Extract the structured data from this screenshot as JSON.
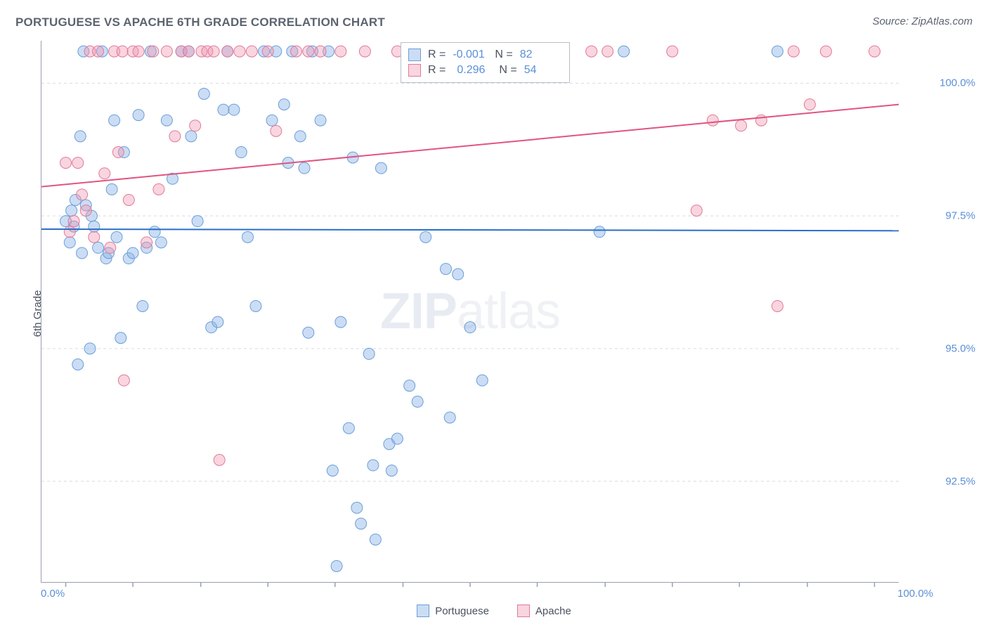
{
  "chart": {
    "type": "scatter",
    "title": "PORTUGUESE VS APACHE 6TH GRADE CORRELATION CHART",
    "source": "Source: ZipAtlas.com",
    "background_color": "#ffffff",
    "axis_color": "#9aa1ad",
    "grid_color": "#d8dce2",
    "grid_dash": "4,4",
    "y_axis": {
      "label": "6th Grade",
      "min": 90.6,
      "max": 100.8,
      "ticks": [
        92.5,
        95.0,
        97.5,
        100.0
      ],
      "tick_labels": [
        "92.5%",
        "95.0%",
        "97.5%",
        "100.0%"
      ],
      "label_color": "#5b8fd6",
      "label_fontsize": 15
    },
    "x_axis": {
      "min": -3,
      "max": 103,
      "ticks": [
        0,
        8.3,
        16.7,
        25,
        33.3,
        41.7,
        50,
        58.3,
        66.7,
        75,
        83.3,
        91.7,
        100
      ],
      "left_label": "0.0%",
      "right_label": "100.0%",
      "label_color": "#5b8fd6"
    },
    "series": [
      {
        "name": "Portuguese",
        "fill": "rgba(140, 180, 230, 0.45)",
        "stroke": "#6a9fd8",
        "line_color": "#2a6fc9",
        "line_width": 2,
        "marker_radius": 8,
        "R": "-0.001",
        "N": "82",
        "trend": {
          "y_at_xmin": 97.25,
          "y_at_xmax": 97.22
        },
        "points": [
          [
            0,
            97.4
          ],
          [
            0.5,
            97.0
          ],
          [
            0.7,
            97.6
          ],
          [
            1,
            97.3
          ],
          [
            1.2,
            97.8
          ],
          [
            1.5,
            94.7
          ],
          [
            1.8,
            99.0
          ],
          [
            2,
            96.8
          ],
          [
            2.2,
            100.6
          ],
          [
            2.5,
            97.7
          ],
          [
            3,
            95.0
          ],
          [
            3.2,
            97.5
          ],
          [
            3.5,
            97.3
          ],
          [
            4,
            96.9
          ],
          [
            4.5,
            100.6
          ],
          [
            5,
            96.7
          ],
          [
            5.3,
            96.8
          ],
          [
            5.7,
            98.0
          ],
          [
            6,
            99.3
          ],
          [
            6.3,
            97.1
          ],
          [
            6.8,
            95.2
          ],
          [
            7.2,
            98.7
          ],
          [
            7.8,
            96.7
          ],
          [
            8.3,
            96.8
          ],
          [
            9,
            99.4
          ],
          [
            9.5,
            95.8
          ],
          [
            10,
            96.9
          ],
          [
            10.5,
            100.6
          ],
          [
            11,
            97.2
          ],
          [
            11.8,
            97.0
          ],
          [
            12.5,
            99.3
          ],
          [
            13.2,
            98.2
          ],
          [
            14.3,
            100.6
          ],
          [
            15.2,
            100.6
          ],
          [
            15.5,
            99.0
          ],
          [
            16.3,
            97.4
          ],
          [
            17.1,
            99.8
          ],
          [
            18,
            95.4
          ],
          [
            18.8,
            95.5
          ],
          [
            19.5,
            99.5
          ],
          [
            20,
            100.6
          ],
          [
            20.8,
            99.5
          ],
          [
            21.7,
            98.7
          ],
          [
            22.5,
            97.1
          ],
          [
            23.5,
            95.8
          ],
          [
            24.5,
            100.6
          ],
          [
            25.5,
            99.3
          ],
          [
            26,
            100.6
          ],
          [
            27,
            99.6
          ],
          [
            27.5,
            98.5
          ],
          [
            28,
            100.6
          ],
          [
            29,
            99.0
          ],
          [
            29.5,
            98.4
          ],
          [
            30,
            95.3
          ],
          [
            30.5,
            100.6
          ],
          [
            31.5,
            99.3
          ],
          [
            32.5,
            100.6
          ],
          [
            33,
            92.7
          ],
          [
            33.5,
            90.9
          ],
          [
            34,
            95.5
          ],
          [
            35,
            93.5
          ],
          [
            35.5,
            98.6
          ],
          [
            36,
            92.0
          ],
          [
            36.5,
            91.7
          ],
          [
            37.5,
            94.9
          ],
          [
            38,
            92.8
          ],
          [
            38.3,
            91.4
          ],
          [
            39,
            98.4
          ],
          [
            40,
            93.2
          ],
          [
            40.3,
            92.7
          ],
          [
            41,
            93.3
          ],
          [
            42.5,
            94.3
          ],
          [
            43.5,
            94.0
          ],
          [
            44.5,
            97.1
          ],
          [
            47,
            96.5
          ],
          [
            47.5,
            93.7
          ],
          [
            48.5,
            96.4
          ],
          [
            50,
            95.4
          ],
          [
            51.5,
            94.4
          ],
          [
            66,
            97.2
          ],
          [
            69,
            100.6
          ],
          [
            88,
            100.6
          ]
        ]
      },
      {
        "name": "Apache",
        "fill": "rgba(240, 150, 175, 0.40)",
        "stroke": "#e07a99",
        "line_color": "#e05580",
        "line_width": 2,
        "marker_radius": 8,
        "R": "0.296",
        "N": "54",
        "trend": {
          "y_at_xmin": 98.05,
          "y_at_xmax": 99.6
        },
        "points": [
          [
            0,
            98.5
          ],
          [
            0.5,
            97.2
          ],
          [
            1,
            97.4
          ],
          [
            1.5,
            98.5
          ],
          [
            2,
            97.9
          ],
          [
            2.5,
            97.6
          ],
          [
            3,
            100.6
          ],
          [
            3.5,
            97.1
          ],
          [
            4,
            100.6
          ],
          [
            4.8,
            98.3
          ],
          [
            5.5,
            96.9
          ],
          [
            6,
            100.6
          ],
          [
            6.5,
            98.7
          ],
          [
            7,
            100.6
          ],
          [
            7.2,
            94.4
          ],
          [
            7.8,
            97.8
          ],
          [
            8.3,
            100.6
          ],
          [
            9,
            100.6
          ],
          [
            10,
            97.0
          ],
          [
            10.8,
            100.6
          ],
          [
            11.5,
            98.0
          ],
          [
            12.5,
            100.6
          ],
          [
            13.5,
            99.0
          ],
          [
            14.3,
            100.6
          ],
          [
            15.2,
            100.6
          ],
          [
            16,
            99.2
          ],
          [
            16.8,
            100.6
          ],
          [
            17.5,
            100.6
          ],
          [
            18.3,
            100.6
          ],
          [
            19,
            92.9
          ],
          [
            20,
            100.6
          ],
          [
            21.5,
            100.6
          ],
          [
            23,
            100.6
          ],
          [
            25,
            100.6
          ],
          [
            26,
            99.1
          ],
          [
            28.5,
            100.6
          ],
          [
            30,
            100.6
          ],
          [
            31.5,
            100.6
          ],
          [
            34,
            100.6
          ],
          [
            37,
            100.6
          ],
          [
            41,
            100.6
          ],
          [
            43.5,
            100.6
          ],
          [
            65,
            100.6
          ],
          [
            67,
            100.6
          ],
          [
            75,
            100.6
          ],
          [
            78,
            97.6
          ],
          [
            80,
            99.3
          ],
          [
            83.5,
            99.2
          ],
          [
            86,
            99.3
          ],
          [
            88,
            95.8
          ],
          [
            90,
            100.6
          ],
          [
            92,
            99.6
          ],
          [
            94,
            100.6
          ],
          [
            100,
            100.6
          ]
        ]
      }
    ],
    "watermark": {
      "zip": "ZIP",
      "atlas": "atlas"
    },
    "legend": {
      "portuguese_fill": "rgba(140,180,230,0.45)",
      "portuguese_stroke": "#6a9fd8",
      "apache_fill": "rgba(240,150,175,0.40)",
      "apache_stroke": "#e07a99"
    }
  }
}
